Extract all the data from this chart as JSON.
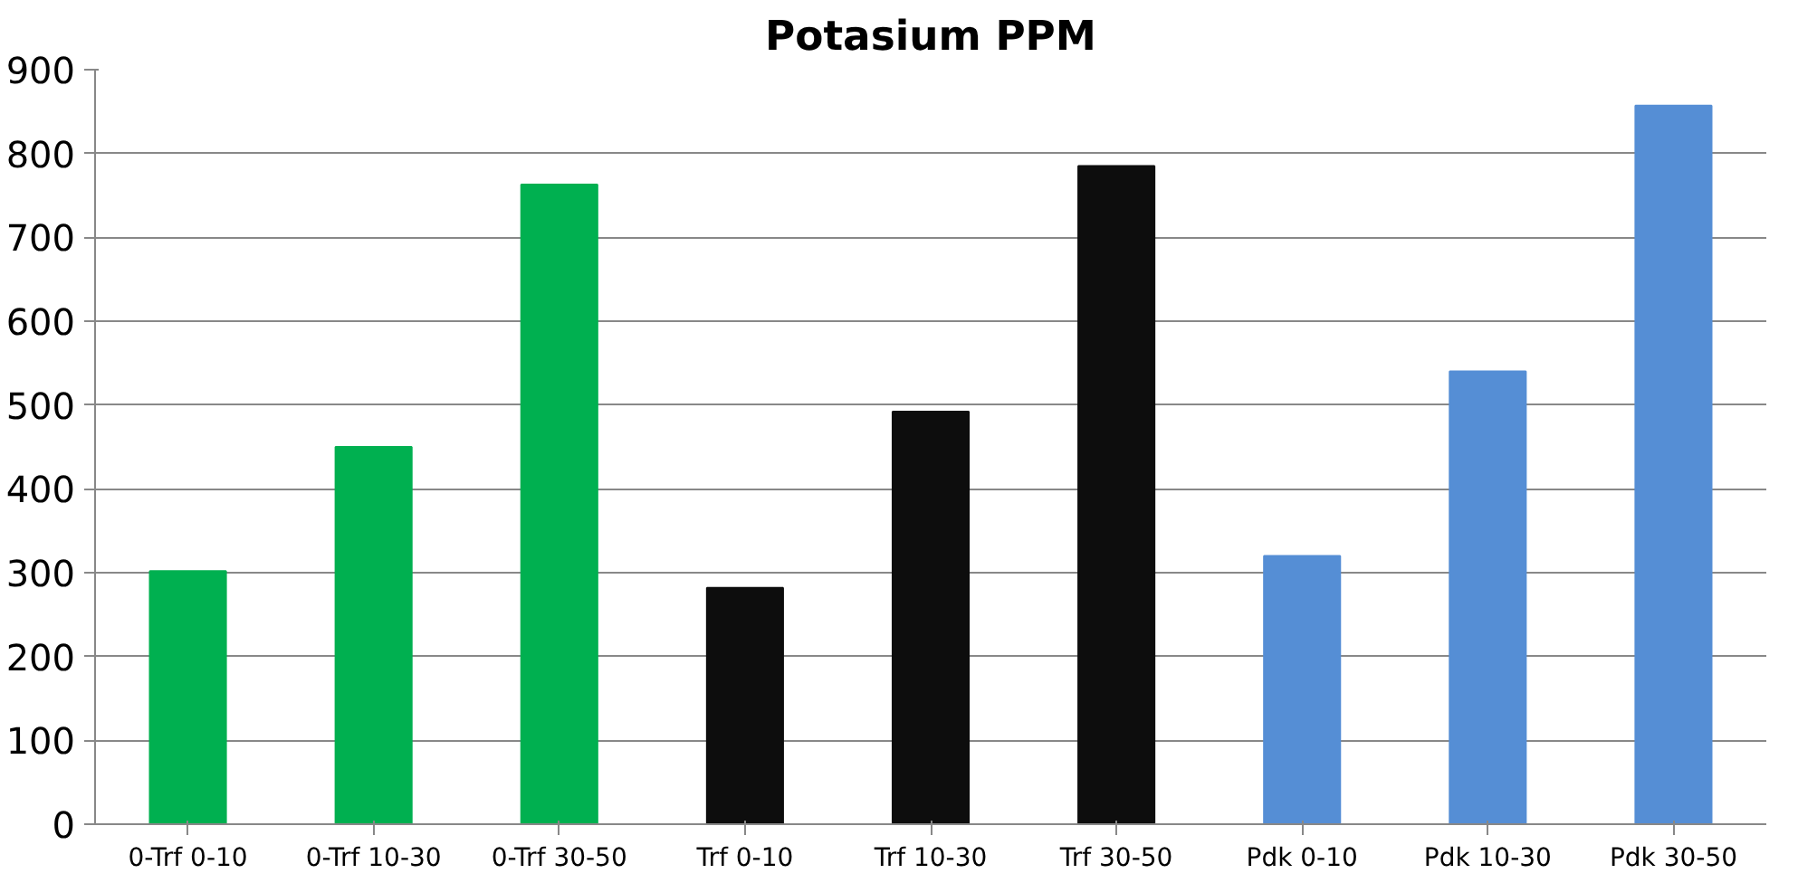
{
  "chart_data": {
    "type": "bar",
    "title": "Potasium PPM",
    "categories": [
      "0-Trf 0-10",
      "0-Trf 10-30",
      "0-Trf 30-50",
      "Trf 0-10",
      "Trf 10-30",
      "Trf 30-50",
      "Pdk 0-10",
      "Pdk 10-30",
      "Pdk 30-50"
    ],
    "values": [
      302,
      450,
      763,
      282,
      492,
      785,
      320,
      540,
      857
    ],
    "colors": [
      "#00b050",
      "#00b050",
      "#00b050",
      "#0d0d0d",
      "#0d0d0d",
      "#0d0d0d",
      "#558ed5",
      "#558ed5",
      "#558ed5"
    ],
    "ylim": [
      0,
      900
    ],
    "yticks": [
      0,
      100,
      200,
      300,
      400,
      500,
      600,
      700,
      800,
      900
    ],
    "grid": "y"
  }
}
